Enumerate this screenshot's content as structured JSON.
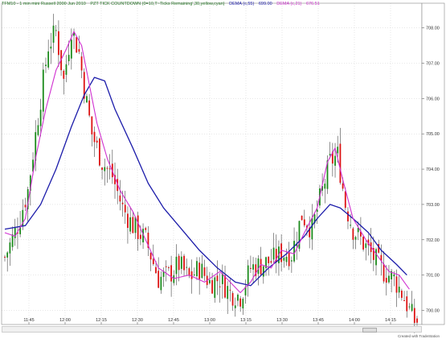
{
  "header": {
    "instrument": "TFM10 - 1 min mini Russell 2000 Jun 2010",
    "indicator": "PZT TICK COUNTDOWN (0=10,T~Ticks Remaining',30,yellow,cyan)",
    "dema_fast_label": "DEMA (c,55)",
    "dema_fast_value": "699.00",
    "dema_fast_color": "#1c1caa",
    "dema_slow_label": "DEMA (c,21)",
    "dema_slow_value": "676.51",
    "dema_slow_color": "#cc33cc"
  },
  "credit": "Created with TradeStation",
  "colors": {
    "up": "#1a8a1a",
    "down": "#dd1111",
    "wick": "#444444",
    "slow": "#d030d0",
    "fast": "#1c1caa"
  },
  "chart_data": {
    "type": "candlestick",
    "title": "TFM10 - 1 min mini Russell 2000 Jun 2010",
    "x_ticks": [
      "11:45",
      "12:00",
      "12:15",
      "12:30",
      "12:45",
      "13:00",
      "13:15",
      "13:30",
      "13:45",
      "14:00",
      "14:15"
    ],
    "y_ticks": [
      "700.00",
      "701.00",
      "702.00",
      "703.00",
      "704.00",
      "705.00",
      "706.00",
      "707.00",
      "708.00"
    ],
    "ylim": [
      699.6,
      708.7
    ],
    "xlim": [
      0,
      161
    ],
    "grid": true,
    "series": [
      {
        "name": "DEMA (c,55)",
        "color": "#1c1caa",
        "points": [
          [
            0,
            702.3
          ],
          [
            8,
            702.4
          ],
          [
            14,
            703.0
          ],
          [
            20,
            704.0
          ],
          [
            26,
            705.2
          ],
          [
            31,
            706.1
          ],
          [
            35,
            706.6
          ],
          [
            39,
            706.5
          ],
          [
            43,
            705.7
          ],
          [
            50,
            704.6
          ],
          [
            56,
            703.6
          ],
          [
            62,
            702.9
          ],
          [
            69,
            702.3
          ],
          [
            76,
            701.7
          ],
          [
            83,
            701.2
          ],
          [
            90,
            700.8
          ],
          [
            96,
            700.7
          ],
          [
            103,
            701.2
          ],
          [
            110,
            701.6
          ],
          [
            117,
            702.1
          ],
          [
            122,
            702.6
          ],
          [
            127,
            703.0
          ],
          [
            131,
            702.9
          ],
          [
            136,
            702.6
          ],
          [
            142,
            702.2
          ],
          [
            147,
            701.7
          ],
          [
            153,
            701.3
          ],
          [
            157,
            701.0
          ]
        ]
      },
      {
        "name": "DEMA (c,21)",
        "color": "#d030d0",
        "points": [
          [
            0,
            702.2
          ],
          [
            4,
            702.1
          ],
          [
            8,
            702.6
          ],
          [
            12,
            704.3
          ],
          [
            16,
            705.7
          ],
          [
            20,
            706.8
          ],
          [
            24,
            707.4
          ],
          [
            27,
            707.9
          ],
          [
            30,
            707.5
          ],
          [
            33,
            706.4
          ],
          [
            36,
            705.3
          ],
          [
            40,
            704.3
          ],
          [
            45,
            703.4
          ],
          [
            50,
            702.8
          ],
          [
            55,
            702.0
          ],
          [
            60,
            701.2
          ],
          [
            66,
            700.9
          ],
          [
            72,
            701.0
          ],
          [
            78,
            700.8
          ],
          [
            84,
            701.1
          ],
          [
            88,
            700.8
          ],
          [
            92,
            700.5
          ],
          [
            96,
            700.8
          ],
          [
            100,
            701.3
          ],
          [
            104,
            701.2
          ],
          [
            108,
            701.7
          ],
          [
            113,
            701.6
          ],
          [
            117,
            702.2
          ],
          [
            122,
            702.9
          ],
          [
            126,
            704.2
          ],
          [
            129,
            704.6
          ],
          [
            132,
            703.7
          ],
          [
            136,
            702.6
          ],
          [
            141,
            702.0
          ],
          [
            146,
            701.5
          ],
          [
            150,
            701.1
          ],
          [
            154,
            701.0
          ],
          [
            158,
            700.6
          ]
        ]
      }
    ],
    "anchors": [
      [
        0,
        701.5
      ],
      [
        5,
        702.4
      ],
      [
        9,
        703.4
      ],
      [
        13,
        705.5
      ],
      [
        17,
        707.5
      ],
      [
        20,
        707.9
      ],
      [
        23,
        706.5
      ],
      [
        26,
        708.0
      ],
      [
        29,
        707.3
      ],
      [
        31,
        706.3
      ],
      [
        34,
        705.0
      ],
      [
        38,
        704.2
      ],
      [
        42,
        703.8
      ],
      [
        46,
        702.9
      ],
      [
        50,
        702.4
      ],
      [
        55,
        702.0
      ],
      [
        60,
        700.9
      ],
      [
        64,
        701.0
      ],
      [
        68,
        701.3
      ],
      [
        72,
        700.9
      ],
      [
        76,
        701.2
      ],
      [
        80,
        700.8
      ],
      [
        84,
        700.9
      ],
      [
        88,
        700.5
      ],
      [
        92,
        700.4
      ],
      [
        96,
        701.2
      ],
      [
        100,
        701.3
      ],
      [
        104,
        701.4
      ],
      [
        108,
        701.6
      ],
      [
        112,
        701.6
      ],
      [
        116,
        702.7
      ],
      [
        120,
        702.3
      ],
      [
        124,
        703.4
      ],
      [
        127,
        704.2
      ],
      [
        130,
        704.4
      ],
      [
        133,
        703.0
      ],
      [
        136,
        702.3
      ],
      [
        140,
        701.9
      ],
      [
        144,
        701.5
      ],
      [
        148,
        701.1
      ],
      [
        152,
        700.9
      ],
      [
        155,
        700.5
      ],
      [
        158,
        700.0
      ],
      [
        160,
        699.7
      ]
    ]
  }
}
